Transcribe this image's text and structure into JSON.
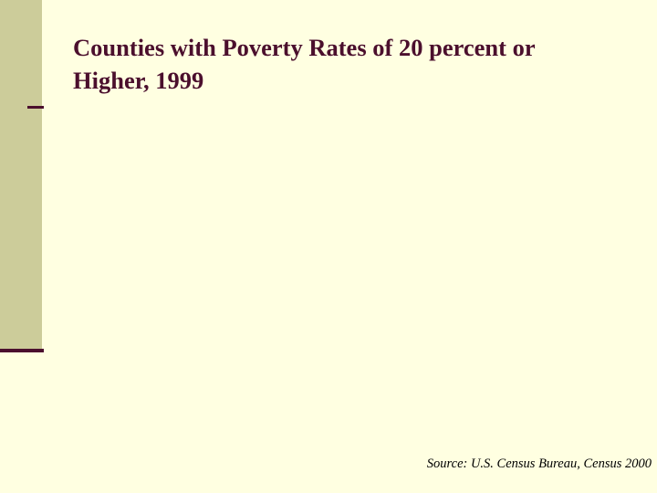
{
  "slide": {
    "title": "Counties with Poverty Rates of 20 percent or\nHigher, 1999",
    "source": "Source: U.S. Census Bureau, Census 2000"
  },
  "colors": {
    "background": "#ffffe1",
    "side_band": "#cccc9a",
    "accent": "#4b0f2d",
    "source_text": "#000000"
  }
}
